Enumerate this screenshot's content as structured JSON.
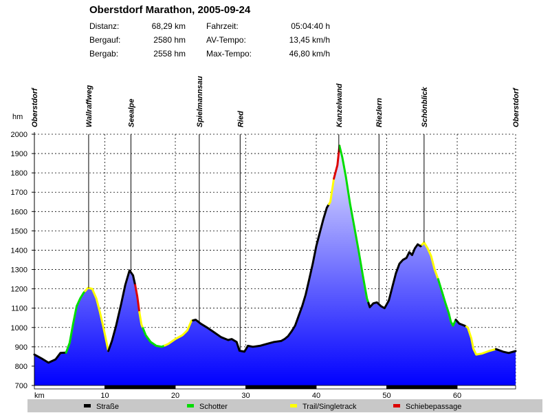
{
  "chart_data": {
    "type": "area",
    "title": "Oberstdorf Marathon, 2005-09-24",
    "stats": [
      {
        "label": "Distanz:",
        "value": "68,29 km",
        "label2": "Fahrzeit:",
        "value2": "05:04:40 h"
      },
      {
        "label": "Bergauf:",
        "value": "2580 hm",
        "label2": "AV-Tempo:",
        "value2": "13,45 km/h"
      },
      {
        "label": "Bergab:",
        "value": "2558 hm",
        "label2": "Max-Tempo:",
        "value2": "46,80 km/h"
      }
    ],
    "xlabel": "km",
    "ylabel": "hm",
    "xlim": [
      0,
      68.29
    ],
    "ylim": [
      700,
      2000
    ],
    "x_ticks": [
      10,
      20,
      30,
      40,
      50,
      60
    ],
    "y_ticks": [
      700,
      800,
      900,
      1000,
      1100,
      1200,
      1300,
      1400,
      1500,
      1600,
      1700,
      1800,
      1900,
      2000
    ],
    "grid": true,
    "waypoints": [
      {
        "name": "Oberstdorf",
        "km": 0
      },
      {
        "name": "Wallraffweg",
        "km": 7.7
      },
      {
        "name": "Seealpe",
        "km": 13.7
      },
      {
        "name": "Spielmannsau",
        "km": 23.4
      },
      {
        "name": "Ried",
        "km": 29.2
      },
      {
        "name": "Kanzelwand",
        "km": 43.2
      },
      {
        "name": "Riezlern",
        "km": 48.9
      },
      {
        "name": "Schönblick",
        "km": 55.3
      },
      {
        "name": "Oberstdorf",
        "km": 68.29
      }
    ],
    "profile": [
      [
        0,
        860
      ],
      [
        1,
        840
      ],
      [
        2,
        818
      ],
      [
        3,
        835
      ],
      [
        3.7,
        868
      ],
      [
        4.5,
        870
      ],
      [
        5,
        920
      ],
      [
        5.5,
        1020
      ],
      [
        6,
        1110
      ],
      [
        6.5,
        1150
      ],
      [
        7,
        1180
      ],
      [
        7.6,
        1205
      ],
      [
        8.2,
        1200
      ],
      [
        8.8,
        1150
      ],
      [
        9.3,
        1080
      ],
      [
        9.8,
        1000
      ],
      [
        10.2,
        930
      ],
      [
        10.5,
        878
      ],
      [
        11,
        930
      ],
      [
        11.6,
        1010
      ],
      [
        12.3,
        1120
      ],
      [
        12.9,
        1220
      ],
      [
        13.5,
        1295
      ],
      [
        14,
        1270
      ],
      [
        14.3,
        1220
      ],
      [
        14.6,
        1160
      ],
      [
        14.9,
        1080
      ],
      [
        15.2,
        1015
      ],
      [
        15.8,
        960
      ],
      [
        16.5,
        925
      ],
      [
        17.3,
        905
      ],
      [
        18.1,
        900
      ],
      [
        19,
        915
      ],
      [
        20,
        940
      ],
      [
        21,
        960
      ],
      [
        21.7,
        985
      ],
      [
        22.3,
        1035
      ],
      [
        22.9,
        1040
      ],
      [
        23.6,
        1020
      ],
      [
        24.5,
        1000
      ],
      [
        25.5,
        975
      ],
      [
        26.5,
        950
      ],
      [
        27.5,
        935
      ],
      [
        28,
        940
      ],
      [
        28.7,
        925
      ],
      [
        29.1,
        880
      ],
      [
        29.8,
        875
      ],
      [
        30.3,
        905
      ],
      [
        31,
        900
      ],
      [
        32,
        905
      ],
      [
        33,
        915
      ],
      [
        34,
        925
      ],
      [
        35,
        930
      ],
      [
        35.5,
        940
      ],
      [
        36,
        955
      ],
      [
        36.5,
        980
      ],
      [
        37,
        1010
      ],
      [
        37.5,
        1060
      ],
      [
        38,
        1110
      ],
      [
        38.5,
        1170
      ],
      [
        39,
        1250
      ],
      [
        39.5,
        1330
      ],
      [
        40,
        1420
      ],
      [
        40.5,
        1490
      ],
      [
        41,
        1560
      ],
      [
        41.5,
        1620
      ],
      [
        42,
        1650
      ],
      [
        42.5,
        1770
      ],
      [
        43,
        1840
      ],
      [
        43.3,
        1940
      ],
      [
        43.7,
        1880
      ],
      [
        44.2,
        1780
      ],
      [
        44.8,
        1640
      ],
      [
        45.4,
        1520
      ],
      [
        46,
        1400
      ],
      [
        46.6,
        1270
      ],
      [
        47.2,
        1150
      ],
      [
        47.6,
        1105
      ],
      [
        48.1,
        1125
      ],
      [
        48.6,
        1130
      ],
      [
        49.2,
        1110
      ],
      [
        49.7,
        1100
      ],
      [
        50.3,
        1140
      ],
      [
        50.8,
        1210
      ],
      [
        51.3,
        1280
      ],
      [
        51.8,
        1330
      ],
      [
        52.3,
        1350
      ],
      [
        52.8,
        1360
      ],
      [
        53.2,
        1390
      ],
      [
        53.6,
        1375
      ],
      [
        54,
        1410
      ],
      [
        54.4,
        1430
      ],
      [
        54.8,
        1420
      ],
      [
        55.3,
        1440
      ],
      [
        55.8,
        1410
      ],
      [
        56.3,
        1370
      ],
      [
        56.8,
        1300
      ],
      [
        57.3,
        1250
      ],
      [
        57.8,
        1190
      ],
      [
        58.3,
        1130
      ],
      [
        58.8,
        1075
      ],
      [
        59.1,
        1030
      ],
      [
        59.4,
        1010
      ],
      [
        59.8,
        1040
      ],
      [
        60.3,
        1020
      ],
      [
        61,
        1010
      ],
      [
        61.5,
        1000
      ],
      [
        62,
        945
      ],
      [
        62.3,
        890
      ],
      [
        62.7,
        860
      ],
      [
        63.5,
        865
      ],
      [
        64.5,
        878
      ],
      [
        65.5,
        888
      ],
      [
        66.5,
        875
      ],
      [
        67.3,
        868
      ],
      [
        68.29,
        878
      ]
    ],
    "segments": [
      {
        "from": 0,
        "to": 4.5,
        "surface": "Straße"
      },
      {
        "from": 4.5,
        "to": 7.2,
        "surface": "Schotter"
      },
      {
        "from": 7.2,
        "to": 10.5,
        "surface": "Trail/Singletrack"
      },
      {
        "from": 10.5,
        "to": 14.3,
        "surface": "Straße"
      },
      {
        "from": 14.3,
        "to": 14.9,
        "surface": "Schiebepassage"
      },
      {
        "from": 14.9,
        "to": 15.4,
        "surface": "Trail/Singletrack"
      },
      {
        "from": 15.4,
        "to": 18.5,
        "surface": "Schotter"
      },
      {
        "from": 18.5,
        "to": 22.5,
        "surface": "Trail/Singletrack"
      },
      {
        "from": 22.5,
        "to": 41.8,
        "surface": "Straße"
      },
      {
        "from": 41.8,
        "to": 42.5,
        "surface": "Trail/Singletrack"
      },
      {
        "from": 42.5,
        "to": 43.3,
        "surface": "Schiebepassage"
      },
      {
        "from": 43.3,
        "to": 47.4,
        "surface": "Schotter"
      },
      {
        "from": 47.4,
        "to": 55.0,
        "surface": "Straße"
      },
      {
        "from": 55.0,
        "to": 57.3,
        "surface": "Trail/Singletrack"
      },
      {
        "from": 57.3,
        "to": 59.8,
        "surface": "Schotter"
      },
      {
        "from": 59.8,
        "to": 61.3,
        "surface": "Straße"
      },
      {
        "from": 61.3,
        "to": 65.5,
        "surface": "Trail/Singletrack"
      },
      {
        "from": 65.5,
        "to": 68.29,
        "surface": "Straße"
      }
    ],
    "legend": [
      {
        "name": "Straße",
        "color": "#000000"
      },
      {
        "name": "Schotter",
        "color": "#00dd00"
      },
      {
        "name": "Trail/Singletrack",
        "color": "#ffff00"
      },
      {
        "name": "Schiebepassage",
        "color": "#dd0000"
      }
    ],
    "legend_position": "bottom",
    "fill_gradient": [
      "#ececff",
      "#0000ff"
    ],
    "distance_bar_colors": [
      "#ffffff",
      "#000000"
    ]
  }
}
